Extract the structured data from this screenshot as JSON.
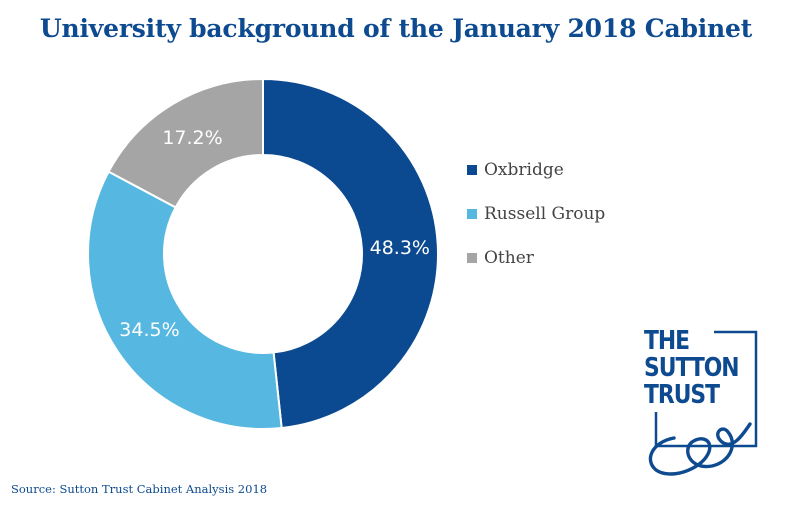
{
  "title": "University background of the January 2018 Cabinet",
  "source": "Source: Sutton Trust Cabinet Analysis 2018",
  "logo": {
    "lines": [
      "THE",
      "SUTTON",
      "TRUST"
    ],
    "color": "#0d4a8f"
  },
  "chart_data": {
    "type": "pie",
    "donut": true,
    "title": "University background of the January 2018 Cabinet",
    "legend_position": "right",
    "series": [
      {
        "name": "Oxbridge",
        "value": 48.3,
        "label": "48.3%",
        "color": "#0b4a91"
      },
      {
        "name": "Russell Group",
        "value": 34.5,
        "label": "34.5%",
        "color": "#56b8e0"
      },
      {
        "name": "Other",
        "value": 17.2,
        "label": "17.2%",
        "color": "#a5a5a5"
      }
    ]
  }
}
